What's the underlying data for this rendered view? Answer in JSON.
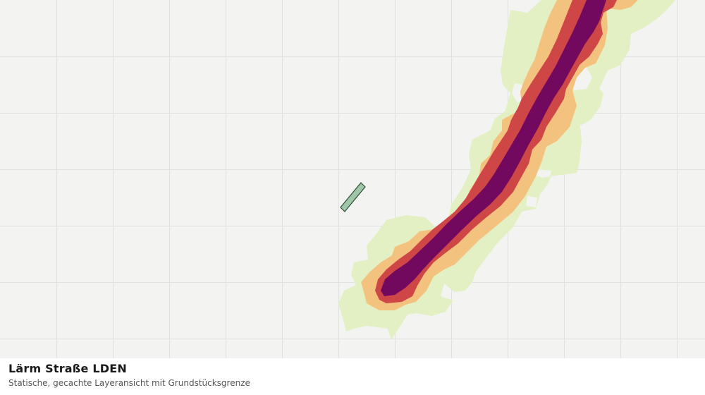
{
  "layer": {
    "title": "Lärm Straße LDEN",
    "subtitle": "Statische, gecachte Layeransicht mit Grundstücksgrenze"
  },
  "map": {
    "background_color": "#f3f4f2",
    "grid_color": "#dfe2df",
    "noise_bands": [
      {
        "level": 1,
        "color": "#e2f0c4"
      },
      {
        "level": 2,
        "color": "#f4c27f"
      },
      {
        "level": 3,
        "color": "#cf4646"
      },
      {
        "level": 4,
        "color": "#73095e"
      }
    ],
    "parcel": {
      "fill": "#9fc6a8",
      "stroke": "#2f4f36"
    }
  }
}
